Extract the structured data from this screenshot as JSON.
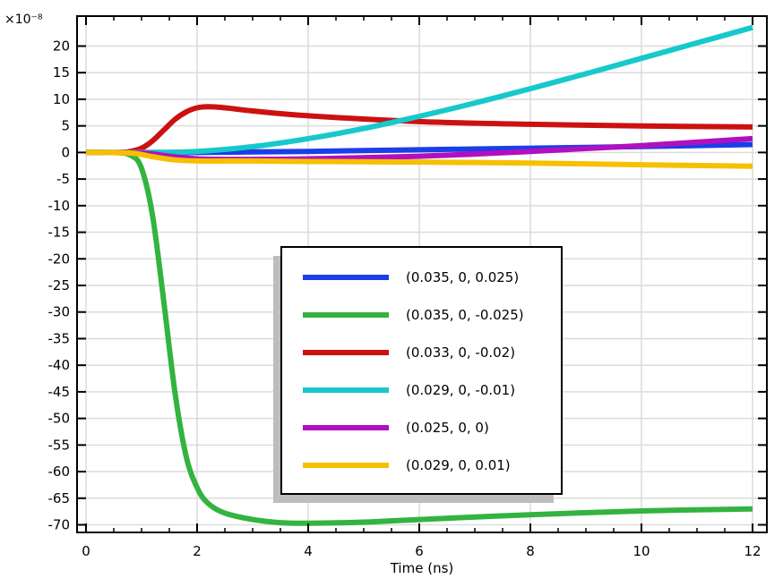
{
  "chart_data": {
    "type": "line",
    "title": "",
    "xlabel": "Time (ns)",
    "ylabel": "",
    "y_multiplier_label": "×10⁻⁸",
    "xlim": [
      0,
      12
    ],
    "ylim": [
      -70,
      23
    ],
    "xticks": [
      0,
      2,
      4,
      6,
      8,
      10,
      12
    ],
    "yticks": [
      20,
      15,
      10,
      5,
      0,
      -5,
      -10,
      -15,
      -20,
      -25,
      -30,
      -35,
      -40,
      -45,
      -50,
      -55,
      -60,
      -65,
      -70
    ],
    "grid": true,
    "legend_position": "center",
    "series": [
      {
        "name": "(0.035, 0, 0.025)",
        "color": "#1a3ee8",
        "x": [
          0,
          1,
          2,
          3,
          4,
          6,
          8,
          10,
          12
        ],
        "y": [
          0,
          0,
          0,
          0.1,
          0.2,
          0.5,
          0.8,
          1.1,
          1.5
        ]
      },
      {
        "name": "(0.035, 0, -0.025)",
        "color": "#33b33f",
        "x": [
          0,
          0.5,
          0.8,
          1.0,
          1.2,
          1.4,
          1.6,
          1.8,
          2.0,
          2.2,
          2.5,
          3.0,
          3.5,
          4.0,
          5.0,
          6.0,
          8.0,
          10.0,
          12.0
        ],
        "y": [
          0,
          0,
          -0.5,
          -3,
          -12,
          -28,
          -45,
          -57,
          -63,
          -66,
          -67.8,
          -69,
          -69.6,
          -69.7,
          -69.5,
          -69,
          -68.1,
          -67.4,
          -67
        ]
      },
      {
        "name": "(0.033, 0, -0.02)",
        "color": "#cc1111",
        "x": [
          0,
          0.6,
          0.8,
          1.0,
          1.2,
          1.4,
          1.6,
          1.8,
          2.0,
          2.2,
          2.5,
          3.0,
          4.0,
          6.0,
          8.0,
          10.0,
          12.0
        ],
        "y": [
          0,
          0,
          0.2,
          0.8,
          2.2,
          4.2,
          6.2,
          7.6,
          8.4,
          8.6,
          8.4,
          7.8,
          6.9,
          5.8,
          5.3,
          5.0,
          4.8
        ]
      },
      {
        "name": "(0.029, 0, -0.01)",
        "color": "#17c8cc",
        "x": [
          0,
          1,
          2,
          3,
          4,
          5,
          6,
          7,
          8,
          9,
          10,
          11,
          12
        ],
        "y": [
          0,
          0,
          0.2,
          1.1,
          2.6,
          4.5,
          6.8,
          9.3,
          12.0,
          14.8,
          17.7,
          20.6,
          23.5
        ]
      },
      {
        "name": "(0.025, 0, 0)",
        "color": "#b010c0",
        "x": [
          0,
          1.0,
          1.5,
          2.0,
          2.5,
          3.0,
          4.0,
          6.0,
          8.0,
          10.0,
          12.0
        ],
        "y": [
          0,
          -0.1,
          -0.7,
          -1.2,
          -1.3,
          -1.3,
          -1.2,
          -0.7,
          0.2,
          1.3,
          2.6
        ]
      },
      {
        "name": "(0.029, 0, 0.01)",
        "color": "#f6c000",
        "x": [
          0,
          0.8,
          1.2,
          1.6,
          2.0,
          2.5,
          3.0,
          4.0,
          6.0,
          8.0,
          10.0,
          12.0
        ],
        "y": [
          0,
          -0.1,
          -0.8,
          -1.4,
          -1.6,
          -1.6,
          -1.6,
          -1.7,
          -1.8,
          -2.0,
          -2.3,
          -2.6
        ]
      }
    ]
  }
}
